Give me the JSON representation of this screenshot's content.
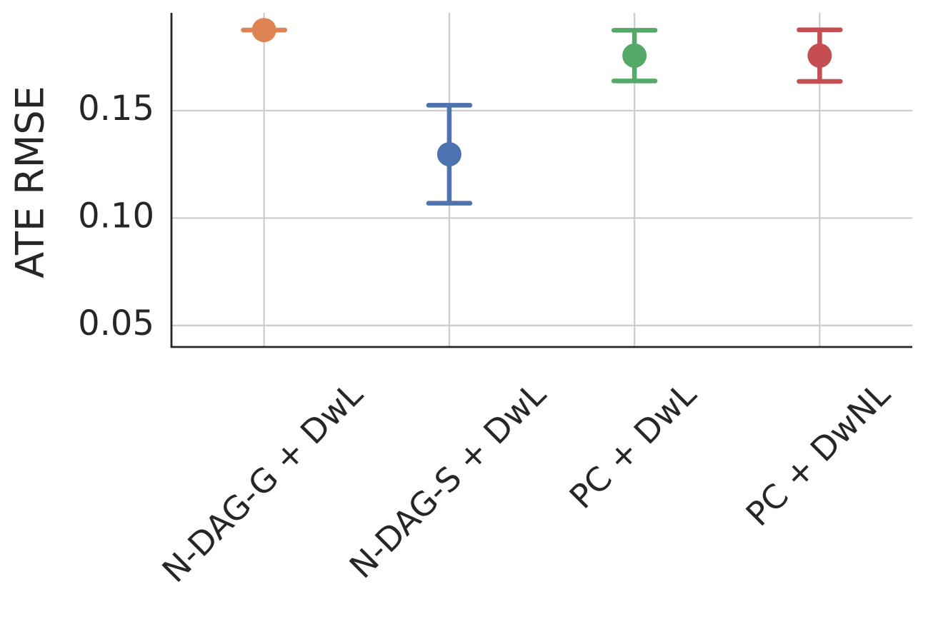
{
  "chart_data": {
    "type": "pointplot",
    "y_label": "ATE RMSE",
    "categories": [
      "N-DAG-G + DwL",
      "N-DAG-S + DwL",
      "PC + DwL",
      "PC + DwNL"
    ],
    "values": [
      0.1875,
      0.1297,
      0.1756,
      0.1756
    ],
    "errors": [
      0,
      0.0228,
      0.0118,
      0.012
    ],
    "colors": [
      "#dd8452",
      "#4c72b0",
      "#55a868",
      "#c44e52"
    ],
    "ylim": [
      0.04,
      0.1955
    ],
    "yticks": [
      0.05,
      {
        "value": 0.1,
        "label": "0.10"
      },
      0.15
    ],
    "grid": true
  }
}
